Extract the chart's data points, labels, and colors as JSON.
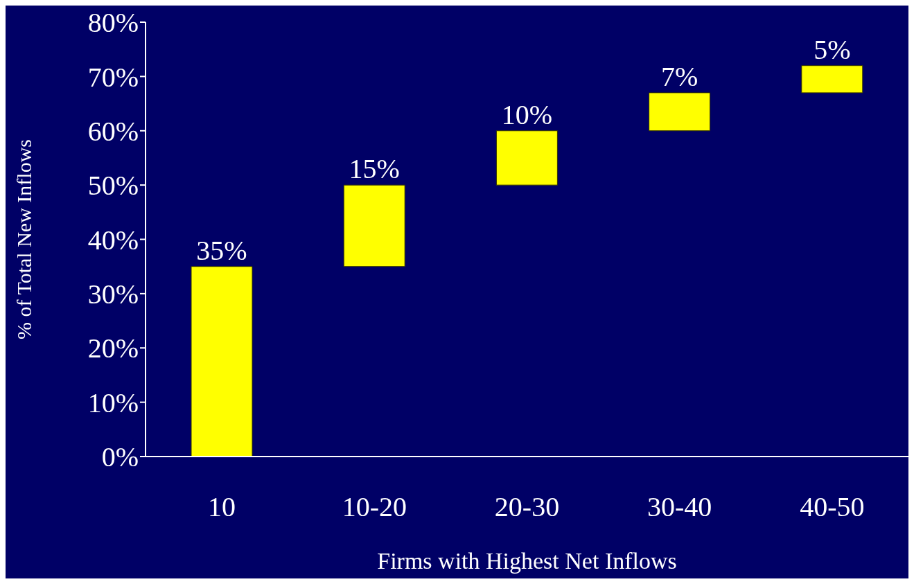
{
  "chart_data": {
    "type": "bar",
    "xlabel": "Firms with Highest Net Inflows",
    "ylabel": "% of Total New Inflows",
    "categories": [
      "10",
      "10-20",
      "20-30",
      "30-40",
      "40-50"
    ],
    "values": [
      35,
      15,
      10,
      7,
      5
    ],
    "base": [
      0,
      35,
      50,
      60,
      67
    ],
    "value_labels": [
      "35%",
      "15%",
      "10%",
      "7%",
      "5%"
    ],
    "color": "#ffff00",
    "ylim": [
      0,
      80
    ],
    "yticks": [
      {
        "value": 0,
        "label": "0%"
      },
      {
        "value": 10,
        "label": "10%"
      },
      {
        "value": 20,
        "label": "20%"
      },
      {
        "value": 30,
        "label": "30%"
      },
      {
        "value": 40,
        "label": "40%"
      },
      {
        "value": 50,
        "label": "50%"
      },
      {
        "value": 60,
        "label": "60%"
      },
      {
        "value": 70,
        "label": "70%"
      },
      {
        "value": 80,
        "label": "80%"
      }
    ],
    "grid": false,
    "legend": false
  }
}
